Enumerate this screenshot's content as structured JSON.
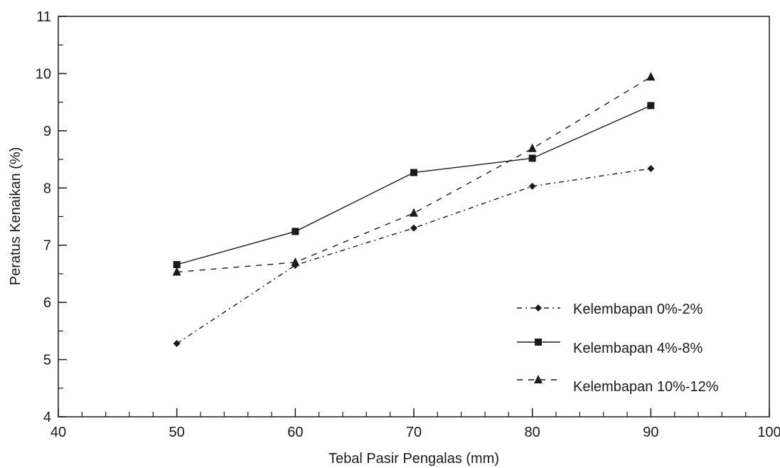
{
  "chart_data": {
    "type": "line",
    "title": "",
    "xlabel": "Tebal Pasir Pengalas (mm)",
    "ylabel": "Peratus Kenaikan (%)",
    "xlim": [
      40,
      100
    ],
    "ylim": [
      4,
      11
    ],
    "x_ticks": [
      "40",
      "50",
      "60",
      "70",
      "80",
      "90",
      "100"
    ],
    "y_ticks": [
      "4",
      "5",
      "6",
      "7",
      "8",
      "9",
      "10",
      "11"
    ],
    "x_minor_step": 2,
    "y_minor_step": 0.5,
    "grid": false,
    "legend_position": "bottom-right",
    "x": [
      50,
      60,
      70,
      80,
      90
    ],
    "series": [
      {
        "name": "Kelembapan 0%-2%",
        "values": [
          5.28,
          6.65,
          7.3,
          8.03,
          8.34
        ],
        "marker": "diamond",
        "line_style": "dash-dot",
        "color": "#1a1a1a"
      },
      {
        "name": "Kelembapan 4%-8%",
        "values": [
          6.66,
          7.24,
          8.27,
          8.52,
          9.44
        ],
        "marker": "square",
        "line_style": "solid",
        "color": "#1a1a1a"
      },
      {
        "name": "Kelembapan 10%-12%",
        "values": [
          6.53,
          6.7,
          7.56,
          8.69,
          9.94
        ],
        "marker": "triangle",
        "line_style": "dashed",
        "color": "#1a1a1a"
      }
    ]
  }
}
